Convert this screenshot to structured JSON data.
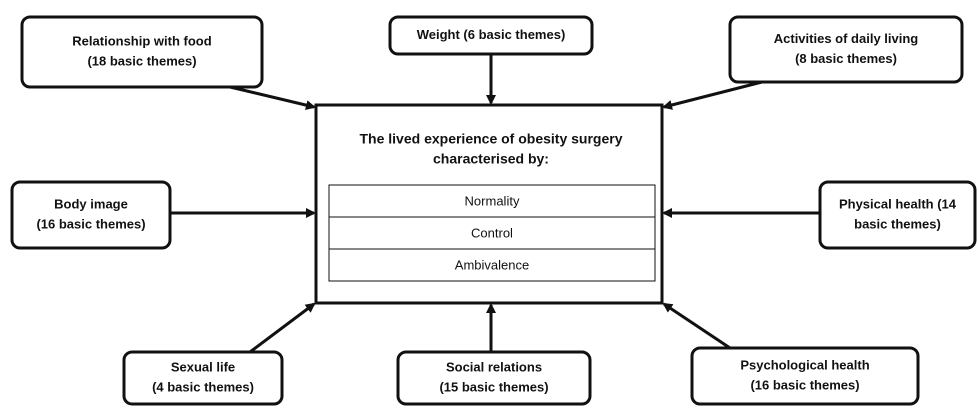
{
  "center": {
    "title_lines": [
      "The lived experience of obesity surgery",
      "characterised by:"
    ],
    "items": [
      "Normality",
      "Control",
      "Ambivalence"
    ]
  },
  "nodes": [
    {
      "lines": [
        "Relationship with food",
        "(18 basic themes)"
      ]
    },
    {
      "lines": [
        "Weight (6 basic themes)"
      ]
    },
    {
      "lines": [
        "Activities of daily living",
        "(8 basic themes)"
      ]
    },
    {
      "lines": [
        "Body image",
        "(16 basic themes)"
      ]
    },
    {
      "lines": [
        "Physical health (14",
        "basic themes)"
      ]
    },
    {
      "lines": [
        "Sexual life",
        "(4 basic themes)"
      ]
    },
    {
      "lines": [
        "Social relations",
        "(15 basic themes)"
      ]
    },
    {
      "lines": [
        "Psychological health",
        "(16 basic themes)"
      ]
    }
  ]
}
